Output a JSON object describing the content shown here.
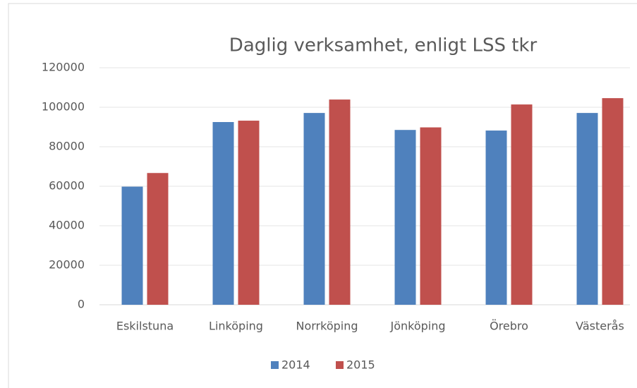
{
  "chart_data": {
    "type": "bar",
    "title": "Daglig verksamhet,   enligt LSS tkr",
    "categories": [
      "Eskilstuna",
      "Linköping",
      "Norrköping",
      "Jönköping",
      "Örebro",
      "Västerås"
    ],
    "series": [
      {
        "name": "2014",
        "color": "#4f81bd",
        "values": [
          59800,
          92500,
          97100,
          88500,
          88200,
          97100
        ]
      },
      {
        "name": "2015",
        "color": "#c0504d",
        "values": [
          66700,
          93200,
          103900,
          89800,
          101400,
          104600
        ]
      }
    ],
    "ylim": [
      0,
      120000
    ],
    "yticks": [
      0,
      20000,
      40000,
      60000,
      80000,
      100000,
      120000
    ],
    "grid": true,
    "legend": "bottom"
  }
}
